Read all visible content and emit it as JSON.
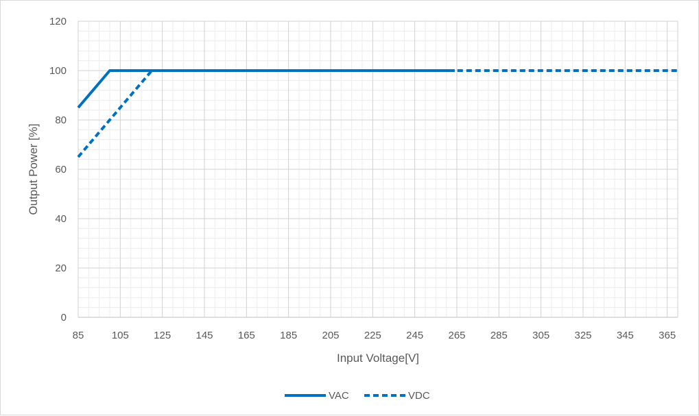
{
  "chart_data": {
    "type": "line",
    "title": "",
    "xlabel": "Input Voltage[V]",
    "ylabel": "Output Power [%]",
    "xlim": [
      85,
      370
    ],
    "ylim": [
      0,
      120
    ],
    "x_ticks": [
      85,
      105,
      125,
      145,
      165,
      185,
      205,
      225,
      245,
      265,
      285,
      305,
      325,
      345,
      365
    ],
    "y_ticks": [
      0,
      20,
      40,
      60,
      80,
      100,
      120
    ],
    "grid": true,
    "minor_grid": true,
    "legend_position": "bottom",
    "series": [
      {
        "name": "VAC",
        "style": "solid",
        "color": "#0070c0",
        "points": [
          [
            85,
            85
          ],
          [
            100,
            100
          ],
          [
            264,
            100
          ]
        ]
      },
      {
        "name": "VDC",
        "style": "dashed",
        "color": "#0070c0",
        "points": [
          [
            85,
            65
          ],
          [
            120,
            100
          ],
          [
            370,
            100
          ]
        ]
      }
    ]
  }
}
